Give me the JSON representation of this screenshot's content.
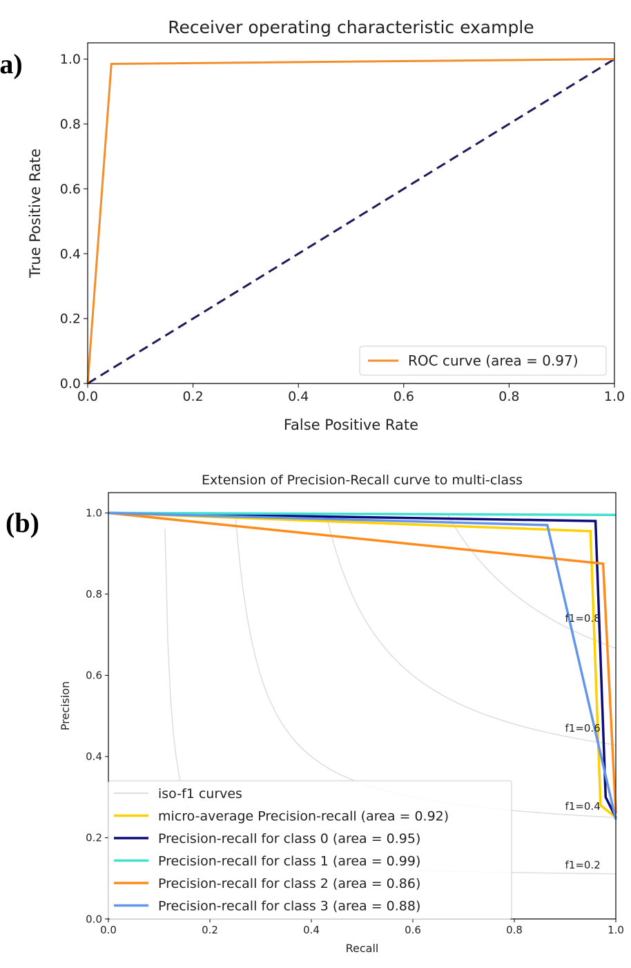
{
  "figure": {
    "panel_a_label": "(a)",
    "panel_b_label": "(b)"
  },
  "chart_data": [
    {
      "type": "line",
      "title": "Receiver operating characteristic example",
      "xlabel": "False Positive Rate",
      "ylabel": "True Positive Rate",
      "xlim": [
        0.0,
        1.0
      ],
      "ylim": [
        0.0,
        1.05
      ],
      "xticks": [
        "0.0",
        "0.2",
        "0.4",
        "0.6",
        "0.8",
        "1.0"
      ],
      "yticks": [
        "0.0",
        "0.2",
        "0.4",
        "0.6",
        "0.8",
        "1.0"
      ],
      "grid": false,
      "legend_position": "lower-right",
      "series": [
        {
          "name": "ROC curve (area = 0.97)",
          "color": "#f28e2b",
          "style": "solid",
          "points": [
            [
              0.0,
              0.0
            ],
            [
              0.045,
              0.985
            ],
            [
              1.0,
              1.0
            ]
          ]
        },
        {
          "color": "#1f1a5a",
          "style": "dashed",
          "points": [
            [
              0.0,
              0.0
            ],
            [
              1.0,
              1.0
            ]
          ]
        }
      ]
    },
    {
      "type": "line",
      "title": "Extension of Precision-Recall curve to multi-class",
      "xlabel": "Recall",
      "ylabel": "Precision",
      "xlim": [
        0.0,
        1.0
      ],
      "ylim": [
        0.0,
        1.05
      ],
      "xticks": [
        "0.0",
        "0.2",
        "0.4",
        "0.6",
        "0.8",
        "1.0"
      ],
      "yticks": [
        "0.0",
        "0.2",
        "0.4",
        "0.6",
        "0.8",
        "1.0"
      ],
      "grid": false,
      "legend_position": "lower-left",
      "iso_f1": {
        "legend": "iso-f1 curves",
        "color": "#dddddd",
        "values": [
          0.2,
          0.4,
          0.6,
          0.8
        ],
        "labels": [
          "f1=0.2",
          "f1=0.4",
          "f1=0.6",
          "f1=0.8"
        ]
      },
      "series": [
        {
          "name": "micro-average Precision-recall (area = 0.92)",
          "color": "#ffd000",
          "points": [
            [
              0.0,
              1.0
            ],
            [
              0.95,
              0.955
            ],
            [
              0.97,
              0.28
            ],
            [
              1.0,
              0.25
            ]
          ]
        },
        {
          "name": "Precision-recall for class 0 (area = 0.95)",
          "color": "#0b0b7a",
          "points": [
            [
              0.0,
              1.0
            ],
            [
              0.96,
              0.98
            ],
            [
              0.98,
              0.3
            ],
            [
              1.0,
              0.25
            ]
          ]
        },
        {
          "name": "Precision-recall for class 1 (area = 0.99)",
          "color": "#40e0d0",
          "points": [
            [
              0.0,
              1.0
            ],
            [
              1.0,
              0.995
            ]
          ]
        },
        {
          "name": "Precision-recall for class 2 (area = 0.86)",
          "color": "#ff8c1a",
          "points": [
            [
              0.0,
              1.0
            ],
            [
              0.975,
              0.875
            ],
            [
              1.0,
              0.26
            ]
          ]
        },
        {
          "name": "Precision-recall for class 3 (area = 0.88)",
          "color": "#6495ed",
          "points": [
            [
              0.0,
              1.0
            ],
            [
              0.865,
              0.97
            ],
            [
              1.0,
              0.245
            ]
          ]
        }
      ]
    }
  ]
}
